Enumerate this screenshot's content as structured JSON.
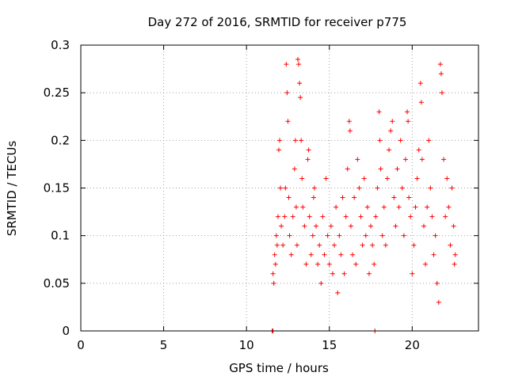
{
  "chart_data": {
    "type": "scatter",
    "title": "Day 272 of 2016, SRMTID for receiver p775",
    "xlabel": "GPS time / hours",
    "ylabel": "SRMTID / TECUs",
    "xlim": [
      0,
      24
    ],
    "ylim": [
      0,
      0.3
    ],
    "xticks": [
      0,
      5,
      10,
      15,
      20
    ],
    "yticks": [
      0,
      0.05,
      0.1,
      0.15,
      0.2,
      0.25,
      0.3
    ],
    "xtick_labels": [
      "0",
      "5",
      "10",
      "15",
      "20"
    ],
    "ytick_labels": [
      "0",
      "0.05",
      "0.1",
      "0.15",
      "0.2",
      "0.25",
      "0.3"
    ],
    "grid": true,
    "marker": "+",
    "color": "#ff0000",
    "series": [
      {
        "name": "SRMTID",
        "points": [
          [
            11.55,
            0.0
          ],
          [
            11.6,
            0.0
          ],
          [
            17.75,
            0.0
          ],
          [
            11.6,
            0.06
          ],
          [
            11.65,
            0.05
          ],
          [
            11.7,
            0.08
          ],
          [
            11.75,
            0.07
          ],
          [
            11.8,
            0.1
          ],
          [
            11.85,
            0.09
          ],
          [
            11.9,
            0.12
          ],
          [
            11.95,
            0.19
          ],
          [
            12.0,
            0.2
          ],
          [
            12.05,
            0.15
          ],
          [
            12.1,
            0.11
          ],
          [
            12.2,
            0.09
          ],
          [
            12.3,
            0.12
          ],
          [
            12.35,
            0.15
          ],
          [
            12.4,
            0.28
          ],
          [
            12.45,
            0.25
          ],
          [
            12.5,
            0.22
          ],
          [
            12.55,
            0.14
          ],
          [
            12.6,
            0.1
          ],
          [
            12.7,
            0.08
          ],
          [
            12.8,
            0.12
          ],
          [
            12.9,
            0.17
          ],
          [
            12.95,
            0.2
          ],
          [
            13.0,
            0.13
          ],
          [
            13.05,
            0.09
          ],
          [
            13.1,
            0.285
          ],
          [
            13.15,
            0.28
          ],
          [
            13.2,
            0.26
          ],
          [
            13.25,
            0.245
          ],
          [
            13.3,
            0.2
          ],
          [
            13.35,
            0.16
          ],
          [
            13.4,
            0.13
          ],
          [
            13.5,
            0.11
          ],
          [
            13.6,
            0.07
          ],
          [
            13.7,
            0.18
          ],
          [
            13.75,
            0.19
          ],
          [
            13.8,
            0.12
          ],
          [
            13.9,
            0.08
          ],
          [
            14.0,
            0.1
          ],
          [
            14.05,
            0.14
          ],
          [
            14.1,
            0.15
          ],
          [
            14.2,
            0.11
          ],
          [
            14.3,
            0.07
          ],
          [
            14.4,
            0.09
          ],
          [
            14.5,
            0.05
          ],
          [
            14.6,
            0.12
          ],
          [
            14.7,
            0.08
          ],
          [
            14.8,
            0.16
          ],
          [
            14.9,
            0.1
          ],
          [
            15.0,
            0.07
          ],
          [
            15.1,
            0.11
          ],
          [
            15.2,
            0.06
          ],
          [
            15.3,
            0.09
          ],
          [
            15.4,
            0.13
          ],
          [
            15.5,
            0.04
          ],
          [
            15.6,
            0.1
          ],
          [
            15.7,
            0.08
          ],
          [
            15.8,
            0.14
          ],
          [
            15.9,
            0.06
          ],
          [
            16.0,
            0.12
          ],
          [
            16.1,
            0.17
          ],
          [
            16.2,
            0.22
          ],
          [
            16.25,
            0.21
          ],
          [
            16.3,
            0.11
          ],
          [
            16.4,
            0.08
          ],
          [
            16.5,
            0.14
          ],
          [
            16.6,
            0.07
          ],
          [
            16.7,
            0.18
          ],
          [
            16.8,
            0.15
          ],
          [
            16.9,
            0.12
          ],
          [
            17.0,
            0.09
          ],
          [
            17.1,
            0.16
          ],
          [
            17.2,
            0.1
          ],
          [
            17.3,
            0.13
          ],
          [
            17.4,
            0.06
          ],
          [
            17.5,
            0.11
          ],
          [
            17.6,
            0.09
          ],
          [
            17.7,
            0.07
          ],
          [
            17.8,
            0.12
          ],
          [
            17.9,
            0.15
          ],
          [
            18.0,
            0.23
          ],
          [
            18.05,
            0.2
          ],
          [
            18.1,
            0.17
          ],
          [
            18.2,
            0.1
          ],
          [
            18.3,
            0.13
          ],
          [
            18.4,
            0.09
          ],
          [
            18.5,
            0.16
          ],
          [
            18.6,
            0.19
          ],
          [
            18.7,
            0.21
          ],
          [
            18.8,
            0.22
          ],
          [
            18.9,
            0.14
          ],
          [
            19.0,
            0.11
          ],
          [
            19.1,
            0.17
          ],
          [
            19.2,
            0.13
          ],
          [
            19.3,
            0.2
          ],
          [
            19.4,
            0.15
          ],
          [
            19.5,
            0.1
          ],
          [
            19.6,
            0.18
          ],
          [
            19.7,
            0.23
          ],
          [
            19.75,
            0.22
          ],
          [
            19.8,
            0.14
          ],
          [
            19.9,
            0.12
          ],
          [
            20.0,
            0.06
          ],
          [
            20.1,
            0.09
          ],
          [
            20.2,
            0.13
          ],
          [
            20.3,
            0.16
          ],
          [
            20.4,
            0.19
          ],
          [
            20.5,
            0.26
          ],
          [
            20.55,
            0.24
          ],
          [
            20.6,
            0.18
          ],
          [
            20.7,
            0.11
          ],
          [
            20.8,
            0.07
          ],
          [
            20.9,
            0.13
          ],
          [
            21.0,
            0.2
          ],
          [
            21.1,
            0.15
          ],
          [
            21.2,
            0.12
          ],
          [
            21.3,
            0.08
          ],
          [
            21.4,
            0.1
          ],
          [
            21.5,
            0.05
          ],
          [
            21.6,
            0.03
          ],
          [
            21.7,
            0.28
          ],
          [
            21.75,
            0.27
          ],
          [
            21.8,
            0.25
          ],
          [
            21.9,
            0.18
          ],
          [
            22.0,
            0.12
          ],
          [
            22.1,
            0.16
          ],
          [
            22.2,
            0.13
          ],
          [
            22.3,
            0.09
          ],
          [
            22.4,
            0.15
          ],
          [
            22.5,
            0.11
          ],
          [
            22.55,
            0.07
          ],
          [
            22.6,
            0.08
          ]
        ]
      }
    ]
  }
}
